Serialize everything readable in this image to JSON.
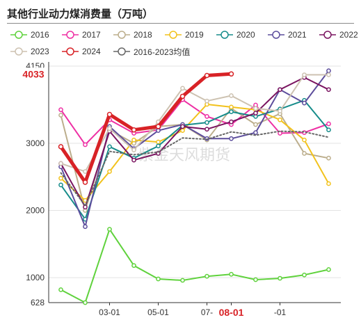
{
  "page": {
    "title": "其他行业动力煤消费量（万吨）",
    "watermark": "紫金天风期货"
  },
  "chart_data": {
    "type": "line",
    "title": "其他行业动力煤消费量（万吨）",
    "xlabel": "",
    "ylabel": "",
    "x_ticks": [
      "03-01",
      "05-01",
      "07-",
      "08-01",
      "-01"
    ],
    "x_tick_months": [
      3,
      5,
      7,
      8,
      10
    ],
    "highlight": {
      "x_label": "08-01",
      "y_label": "4033",
      "color": "#d82226"
    },
    "y_ticks": [
      628,
      1000,
      2000,
      3000,
      4150
    ],
    "ylim": [
      628,
      4150
    ],
    "grid": true,
    "legend_position": "top",
    "months": [
      1,
      2,
      3,
      4,
      5,
      6,
      7,
      8,
      9,
      10,
      11,
      12
    ],
    "series": [
      {
        "name": "2016",
        "color": "#5fd23c",
        "dash": "",
        "width": 2,
        "values": [
          820,
          628,
          1720,
          1180,
          980,
          960,
          1020,
          1050,
          970,
          990,
          1040,
          1120
        ]
      },
      {
        "name": "2017",
        "color": "#ee2fa4",
        "dash": "",
        "width": 2,
        "values": [
          3500,
          2980,
          3350,
          3150,
          3200,
          3650,
          3400,
          3280,
          3570,
          3150,
          3160,
          3290
        ]
      },
      {
        "name": "2018",
        "color": "#bcae8c",
        "dash": "",
        "width": 2,
        "values": [
          3420,
          2000,
          3200,
          3000,
          3250,
          3280,
          3050,
          3520,
          3280,
          3440,
          2850,
          2780
        ]
      },
      {
        "name": "2019",
        "color": "#f2c21c",
        "dash": "",
        "width": 2,
        "values": [
          2480,
          2150,
          2580,
          3050,
          3020,
          3190,
          3580,
          3540,
          3500,
          3350,
          3050,
          2400
        ]
      },
      {
        "name": "2020",
        "color": "#168c8a",
        "dash": "",
        "width": 2,
        "values": [
          2380,
          1870,
          2950,
          2780,
          2960,
          3270,
          3310,
          3470,
          3400,
          3510,
          3640,
          3200
        ]
      },
      {
        "name": "2021",
        "color": "#5c4d9c",
        "dash": "",
        "width": 2,
        "values": [
          2650,
          1760,
          3250,
          2920,
          3190,
          3280,
          3070,
          3070,
          3160,
          3800,
          3600,
          4080
        ]
      },
      {
        "name": "2022",
        "color": "#7a1460",
        "dash": "",
        "width": 2,
        "values": [
          2700,
          2050,
          3180,
          2750,
          2850,
          3250,
          3210,
          3320,
          3450,
          3800,
          3980,
          3800
        ]
      },
      {
        "name": "2023",
        "color": "#cdc2b1",
        "dash": "",
        "width": 2,
        "values": [
          2700,
          2580,
          3220,
          2900,
          3320,
          3820,
          3630,
          3710,
          3520,
          3480,
          4020,
          4020
        ]
      },
      {
        "name": "2024",
        "color": "#d82226",
        "dash": "",
        "width": 5,
        "values": [
          2950,
          2420,
          3430,
          3200,
          3250,
          3700,
          4010,
          4033
        ]
      },
      {
        "name": "2016-2023均值",
        "color": "#666666",
        "dash": "2 3",
        "width": 2,
        "values": [
          2560,
          2070,
          2880,
          2830,
          2870,
          3080,
          3060,
          3170,
          3120,
          3180,
          3170,
          3090
        ]
      }
    ]
  }
}
